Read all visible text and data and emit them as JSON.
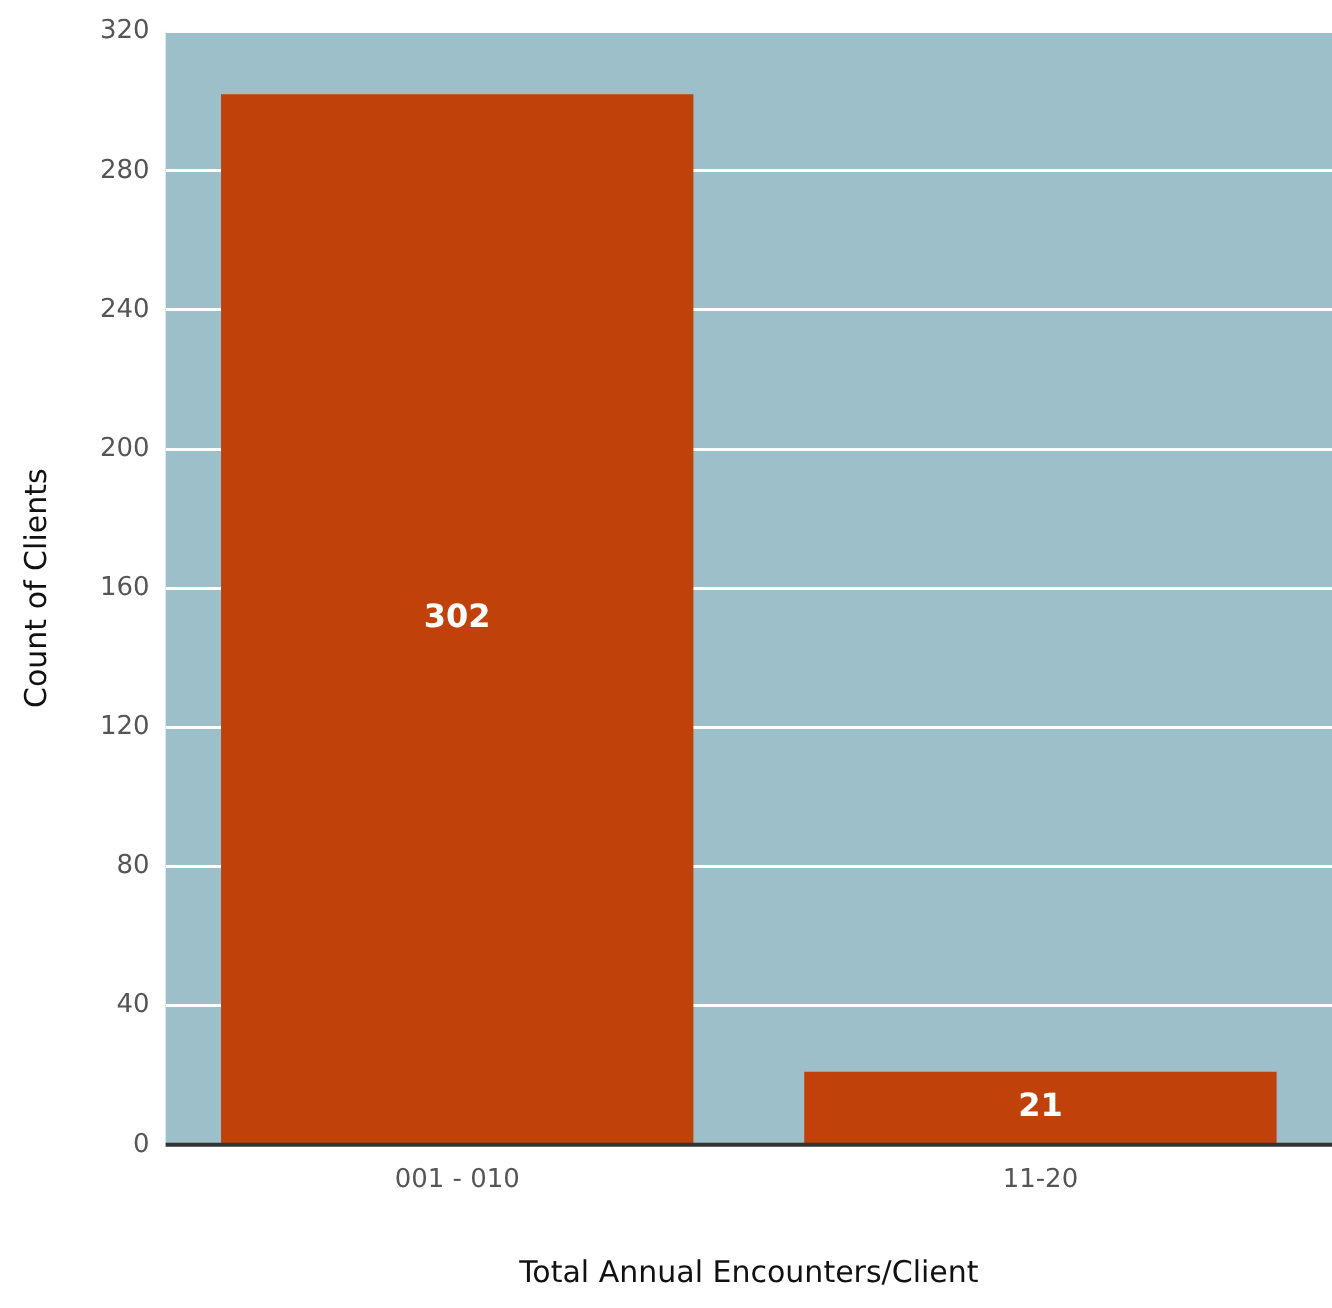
{
  "chart_data": {
    "type": "bar",
    "xlabel": "Total Annual Encounters/Client",
    "ylabel": "Count of Clients",
    "categories": [
      "001 - 010",
      "11-20"
    ],
    "values": [
      302,
      21
    ],
    "color": "#c1410b",
    "ylim": [
      0,
      320
    ],
    "yticks": [
      0,
      40,
      80,
      120,
      160,
      200,
      240,
      280,
      320
    ],
    "grid": "y",
    "legend": false,
    "data_labels": true
  }
}
